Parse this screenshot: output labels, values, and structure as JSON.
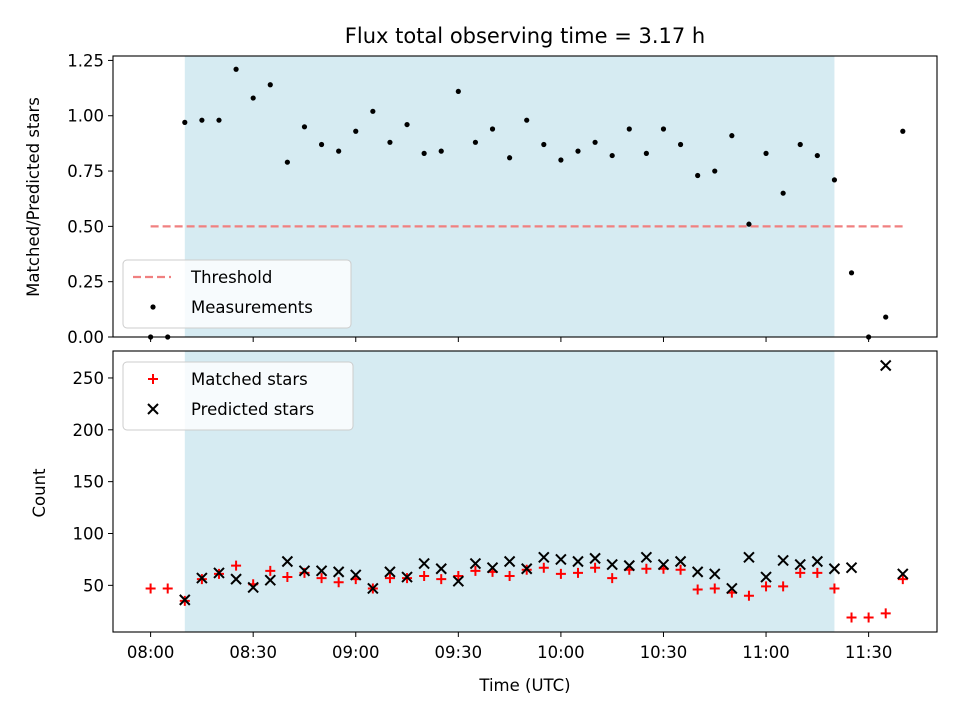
{
  "chart_data": [
    {
      "type": "scatter",
      "title": "Flux total observing time = 3.17 h",
      "xlabel": "",
      "ylabel": "Matched/Predicted stars",
      "xlim_minutes": [
        -11,
        230
      ],
      "ylim": [
        0,
        1.27
      ],
      "yticks": [
        0.0,
        0.25,
        0.5,
        0.75,
        1.0,
        1.25
      ],
      "ytick_labels": [
        "0.00",
        "0.25",
        "0.50",
        "0.75",
        "1.00",
        "1.25"
      ],
      "shaded_span": [
        "08:10",
        "11:20"
      ],
      "threshold": {
        "name": "Threshold",
        "value": 0.5,
        "color": "#f08080",
        "x": [
          "08:00",
          "11:40"
        ]
      },
      "series": [
        {
          "name": "Measurements",
          "color": "#000000",
          "x": [
            "08:00",
            "08:05",
            "08:10",
            "08:15",
            "08:20",
            "08:25",
            "08:30",
            "08:35",
            "08:40",
            "08:45",
            "08:50",
            "08:55",
            "09:00",
            "09:05",
            "09:10",
            "09:15",
            "09:20",
            "09:25",
            "09:30",
            "09:35",
            "09:40",
            "09:45",
            "09:50",
            "09:55",
            "10:00",
            "10:05",
            "10:10",
            "10:15",
            "10:20",
            "10:25",
            "10:30",
            "10:35",
            "10:40",
            "10:45",
            "10:50",
            "10:55",
            "11:00",
            "11:05",
            "11:10",
            "11:15",
            "11:20",
            "11:25",
            "11:30",
            "11:35",
            "11:40"
          ],
          "values": [
            0.0,
            0.0,
            0.97,
            0.98,
            0.98,
            1.21,
            1.08,
            1.14,
            0.79,
            0.95,
            0.87,
            0.84,
            0.93,
            1.02,
            0.88,
            0.96,
            0.83,
            0.84,
            1.11,
            0.88,
            0.94,
            0.81,
            0.98,
            0.87,
            0.8,
            0.84,
            0.88,
            0.82,
            0.94,
            0.83,
            0.94,
            0.87,
            0.73,
            0.75,
            0.91,
            0.51,
            0.83,
            0.65,
            0.87,
            0.82,
            0.71,
            0.29,
            0.0,
            0.09,
            0.93
          ]
        }
      ]
    },
    {
      "type": "scatter",
      "title": "",
      "xlabel": "Time (UTC)",
      "ylabel": "Count",
      "xlim_minutes": [
        -11,
        230
      ],
      "ylim": [
        5,
        276
      ],
      "yticks": [
        50,
        100,
        150,
        200,
        250
      ],
      "ytick_labels": [
        "50",
        "100",
        "150",
        "200",
        "250"
      ],
      "xticks": [
        "08:00",
        "08:30",
        "09:00",
        "09:30",
        "10:00",
        "10:30",
        "11:00",
        "11:30"
      ],
      "shaded_span": [
        "08:10",
        "11:20"
      ],
      "series": [
        {
          "name": "Matched stars",
          "color": "#ff0000",
          "marker": "plus",
          "x": [
            "08:00",
            "08:05",
            "08:10",
            "08:15",
            "08:20",
            "08:25",
            "08:30",
            "08:35",
            "08:40",
            "08:45",
            "08:50",
            "08:55",
            "09:00",
            "09:05",
            "09:10",
            "09:15",
            "09:20",
            "09:25",
            "09:30",
            "09:35",
            "09:40",
            "09:45",
            "09:50",
            "09:55",
            "10:00",
            "10:05",
            "10:10",
            "10:15",
            "10:20",
            "10:25",
            "10:30",
            "10:35",
            "10:40",
            "10:45",
            "10:50",
            "10:55",
            "11:00",
            "11:05",
            "11:10",
            "11:15",
            "11:20",
            "11:25",
            "11:30",
            "11:35",
            "11:40"
          ],
          "values": [
            47,
            47,
            35,
            56,
            61,
            69,
            51,
            64,
            58,
            62,
            57,
            53,
            56,
            47,
            57,
            57,
            59,
            56,
            59,
            64,
            63,
            59,
            65,
            67,
            61,
            62,
            67,
            57,
            65,
            66,
            66,
            65,
            46,
            47,
            43,
            40,
            49,
            49,
            62,
            62,
            47,
            19,
            19,
            23,
            56
          ]
        },
        {
          "name": "Predicted stars",
          "color": "#000000",
          "marker": "x",
          "x": [
            "08:10",
            "08:15",
            "08:20",
            "08:25",
            "08:30",
            "08:35",
            "08:40",
            "08:45",
            "08:50",
            "08:55",
            "09:00",
            "09:05",
            "09:10",
            "09:15",
            "09:20",
            "09:25",
            "09:30",
            "09:35",
            "09:40",
            "09:45",
            "09:50",
            "09:55",
            "10:00",
            "10:05",
            "10:10",
            "10:15",
            "10:20",
            "10:25",
            "10:30",
            "10:35",
            "10:40",
            "10:45",
            "10:50",
            "10:55",
            "11:00",
            "11:05",
            "11:10",
            "11:15",
            "11:20",
            "11:25",
            "11:35",
            "11:40"
          ],
          "values": [
            36,
            57,
            62,
            56,
            48,
            55,
            73,
            64,
            64,
            63,
            60,
            47,
            63,
            58,
            71,
            66,
            54,
            71,
            67,
            73,
            66,
            77,
            75,
            73,
            76,
            70,
            69,
            77,
            70,
            73,
            63,
            61,
            47,
            77,
            58,
            74,
            70,
            73,
            66,
            67,
            262,
            61
          ]
        }
      ]
    }
  ]
}
